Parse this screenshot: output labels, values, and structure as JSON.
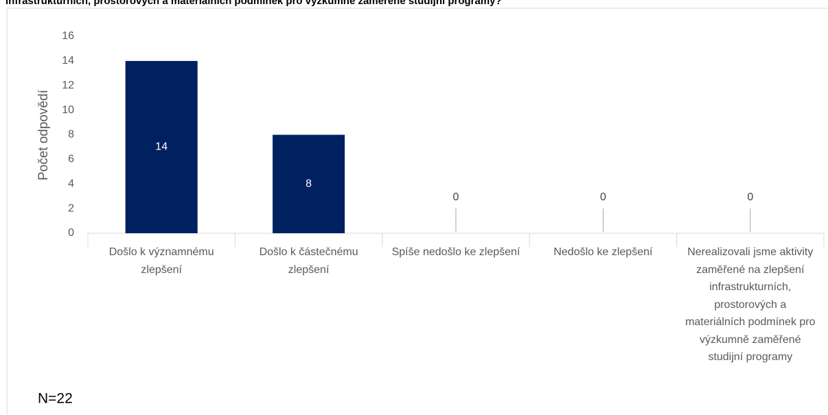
{
  "chart_data": {
    "type": "bar",
    "title": "infrastrukturních, prostorových a materiálních podmínek pro výzkumně zaměřené studijní programy?",
    "ylabel": "Počet odpovědí",
    "annotation": "N=22",
    "categories": [
      "Došlo k významnému zlepšení",
      "Došlo k částečnému zlepšení",
      "Spíše nedošlo ke zlepšení",
      "Nedošlo ke zlepšení",
      "Nerealizovali jsme aktivity zaměřené na zlepšení infrastrukturních, prostorových a materiálních podmínek pro výzkumně zaměřené studijní programy"
    ],
    "values": [
      14,
      8,
      0,
      0,
      0
    ],
    "color": "#002060",
    "ylim": [
      0,
      16
    ],
    "yticks": [
      0,
      2,
      4,
      6,
      8,
      10,
      12,
      14,
      16
    ],
    "grid": false
  }
}
